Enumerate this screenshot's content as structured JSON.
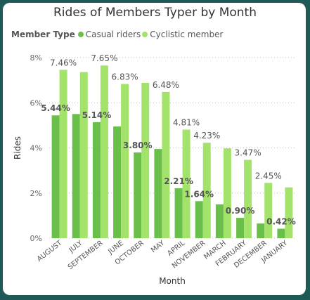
{
  "chart_data": {
    "type": "bar",
    "title": "Rides of Members Typer by Month",
    "legend_title": "Member Type",
    "xlabel": "Month",
    "ylabel": "Rides",
    "ylim": [
      0,
      8
    ],
    "yticks": [
      "0%",
      "2%",
      "4%",
      "6%",
      "8%"
    ],
    "categories": [
      "AUGUST",
      "JULY",
      "SEPTEMBER",
      "JUNE",
      "OCTOBER",
      "MAY",
      "APRIL",
      "NOVEMBER",
      "MARCH",
      "FEBRUARY",
      "DECEMBER",
      "JANUARY"
    ],
    "series": [
      {
        "name": "Casual riders",
        "color": "#6abf4b",
        "values": [
          5.44,
          5.5,
          5.14,
          4.95,
          3.8,
          3.95,
          2.21,
          1.64,
          1.5,
          0.9,
          0.65,
          0.42
        ],
        "labels": [
          "5.44%",
          "",
          "5.14%",
          "",
          "3.80%",
          "",
          "2.21%",
          "1.64%",
          "",
          "0.90%",
          "",
          "0.42%"
        ]
      },
      {
        "name": "Cyclistic member",
        "color": "#a3e36b",
        "values": [
          7.46,
          7.36,
          7.65,
          6.83,
          6.88,
          6.48,
          4.81,
          4.23,
          3.98,
          3.47,
          2.45,
          2.25
        ],
        "labels": [
          "7.46%",
          "",
          "7.65%",
          "6.83%",
          "",
          "6.48%",
          "4.81%",
          "4.23%",
          "",
          "3.47%",
          "2.45%",
          ""
        ]
      }
    ],
    "grid": true,
    "legend_position": "top-left"
  }
}
